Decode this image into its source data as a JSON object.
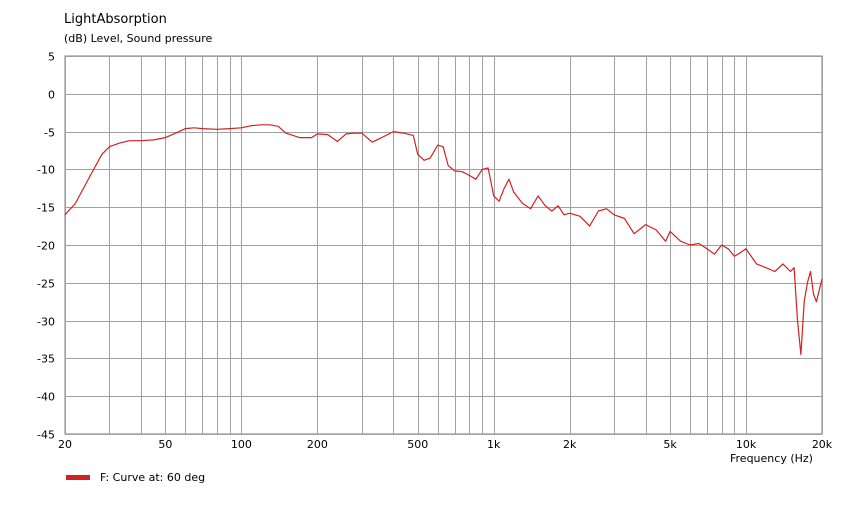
{
  "chart_data": {
    "type": "line",
    "title": "LightAbsorption",
    "ylabel": "(dB)  Level, Sound pressure",
    "xlabel": "Frequency  (Hz)",
    "x_scale": "log",
    "xlim": [
      20,
      20000
    ],
    "ylim": [
      -45,
      5
    ],
    "grid": true,
    "legend_position": "bottom-left",
    "y_ticks": [
      5,
      0,
      -5,
      -10,
      -15,
      -20,
      -25,
      -30,
      -35,
      -40,
      -45
    ],
    "y_tick_labels": [
      "5",
      "0",
      "-5",
      "-10",
      "-15",
      "-20",
      "-25",
      "-30",
      "-35",
      "-40",
      "-45"
    ],
    "x_tick_values": [
      20,
      50,
      100,
      200,
      500,
      1000,
      2000,
      5000,
      10000,
      20000
    ],
    "x_tick_labels": [
      "20",
      "50",
      "100",
      "200",
      "500",
      "1k",
      "2k",
      "5k",
      "10k",
      "20k"
    ],
    "series": [
      {
        "name": "F: Curve at: 60 deg",
        "color": "#d42020",
        "x": [
          20,
          22,
          25,
          28,
          30,
          33,
          36,
          40,
          45,
          50,
          55,
          60,
          65,
          70,
          80,
          90,
          100,
          110,
          120,
          130,
          140,
          150,
          170,
          190,
          200,
          220,
          240,
          260,
          280,
          300,
          330,
          360,
          400,
          440,
          480,
          500,
          530,
          560,
          600,
          630,
          660,
          700,
          750,
          800,
          850,
          900,
          950,
          1000,
          1050,
          1100,
          1150,
          1200,
          1300,
          1400,
          1500,
          1600,
          1700,
          1800,
          1900,
          2000,
          2200,
          2400,
          2600,
          2800,
          3000,
          3300,
          3600,
          4000,
          4400,
          4800,
          5000,
          5500,
          6000,
          6500,
          7000,
          7500,
          8000,
          8500,
          9000,
          9500,
          10000,
          11000,
          12000,
          13000,
          14000,
          15000,
          15500,
          16000,
          16500,
          17000,
          17500,
          18000,
          18500,
          19000,
          19500,
          20000
        ],
        "values": [
          -16,
          -14.5,
          -11,
          -8,
          -7,
          -6.5,
          -6.2,
          -6.2,
          -6.1,
          -5.8,
          -5.2,
          -4.6,
          -4.5,
          -4.6,
          -4.7,
          -4.6,
          -4.5,
          -4.2,
          -4.1,
          -4.1,
          -4.3,
          -5.2,
          -5.8,
          -5.8,
          -5.3,
          -5.4,
          -6.3,
          -5.3,
          -5.2,
          -5.2,
          -6.4,
          -5.8,
          -5.0,
          -5.2,
          -5.5,
          -8.0,
          -8.8,
          -8.5,
          -6.8,
          -7.0,
          -9.5,
          -10.2,
          -10.3,
          -10.8,
          -11.3,
          -10.0,
          -9.8,
          -13.5,
          -14.2,
          -12.5,
          -11.3,
          -13.0,
          -14.5,
          -15.2,
          -13.5,
          -14.8,
          -15.5,
          -14.8,
          -16.0,
          -15.8,
          -16.2,
          -17.5,
          -15.5,
          -15.2,
          -16.0,
          -16.5,
          -18.5,
          -17.3,
          -18.0,
          -19.5,
          -18.2,
          -19.5,
          -20.0,
          -19.8,
          -20.5,
          -21.2,
          -20.0,
          -20.5,
          -21.5,
          -21.0,
          -20.5,
          -22.5,
          -23.0,
          -23.5,
          -22.5,
          -23.5,
          -23.0,
          -30.0,
          -34.5,
          -27.5,
          -25.0,
          -23.5,
          -26.5,
          -27.5,
          -26.0,
          -24.5
        ]
      }
    ]
  },
  "legend": {
    "label": "F: Curve at: 60 deg",
    "color": "#d42020"
  }
}
